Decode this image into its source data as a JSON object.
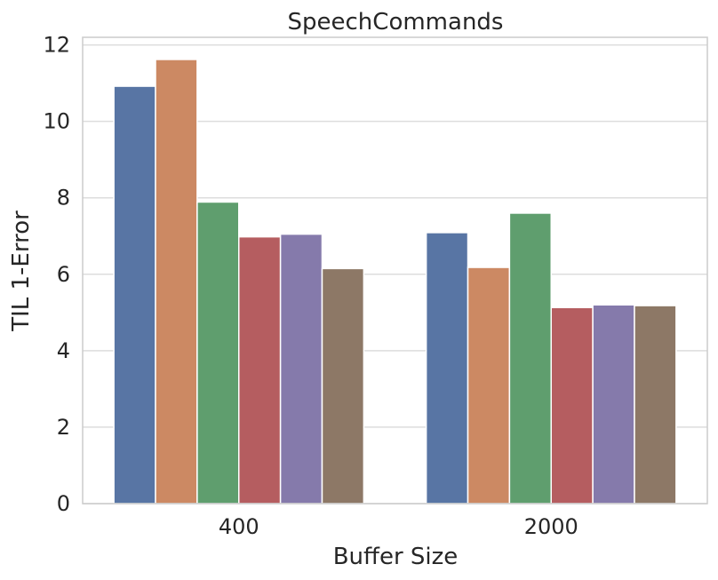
{
  "chart_data": {
    "type": "bar",
    "title": "SpeechCommands",
    "xlabel": "Buffer Size",
    "ylabel": "TIL 1-Error",
    "categories": [
      "400",
      "2000"
    ],
    "ylim": [
      0,
      12.2
    ],
    "yticks": [
      0,
      2,
      4,
      6,
      8,
      10,
      12
    ],
    "grid": true,
    "legend": "none",
    "series": [
      {
        "values": [
          10.92,
          7.09
        ],
        "color": "#5875a4"
      },
      {
        "values": [
          11.62,
          6.18
        ],
        "color": "#cc8963"
      },
      {
        "values": [
          7.89,
          7.6
        ],
        "color": "#5f9e6e"
      },
      {
        "values": [
          6.98,
          5.13
        ],
        "color": "#b55d60"
      },
      {
        "values": [
          7.05,
          5.2
        ],
        "color": "#857aab"
      },
      {
        "values": [
          6.15,
          5.18
        ],
        "color": "#8d7866"
      }
    ]
  }
}
